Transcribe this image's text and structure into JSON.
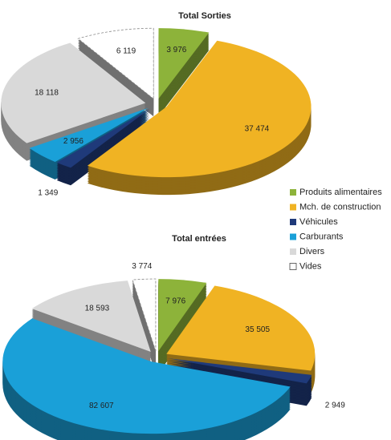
{
  "chart_data": [
    {
      "type": "pie",
      "title": "Total Sorties",
      "categories": [
        "Produits alimentaires",
        "Mch. de construction",
        "Véhicules",
        "Carburants",
        "Divers",
        "Vides"
      ],
      "colors": [
        "#8db33a",
        "#f0b323",
        "#1f3a7a",
        "#1aa0d8",
        "#d9d9d9",
        "#ffffff"
      ],
      "values": [
        3976,
        37474,
        1349,
        2956,
        18118,
        6119
      ],
      "value_labels": [
        "3 976",
        "37 474",
        "1 349",
        "2 956",
        "18 118",
        "6 119"
      ]
    },
    {
      "type": "pie",
      "title": "Total entrées",
      "values": [
        7976,
        35505,
        2949,
        82607,
        18593,
        3774
      ],
      "value_labels": [
        "7 976",
        "35 505",
        "2 949",
        "82 607",
        "18 593",
        "3 774"
      ]
    }
  ]
}
